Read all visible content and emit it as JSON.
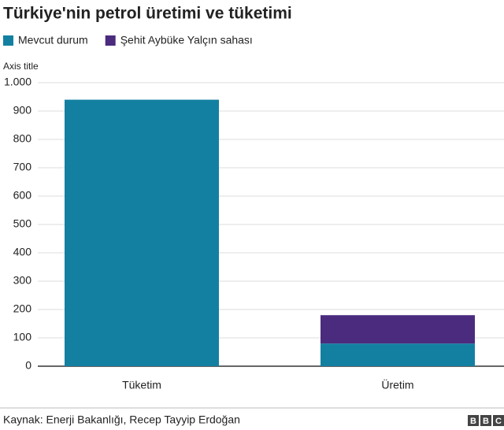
{
  "chart_data": {
    "type": "stacked_bar",
    "title": "Türkiye'nin petrol üretimi ve tüketimi",
    "y_axis_title": "Axis title",
    "categories": [
      "Tüketim",
      "Üretim"
    ],
    "series": [
      {
        "name": "Mevcut durum",
        "color": "#1380A1",
        "values": [
          940,
          80
        ]
      },
      {
        "name": "Şehit Aybüke Yalçın sahası",
        "color": "#4B2B7E",
        "values": [
          null,
          100
        ]
      }
    ],
    "ylim": [
      0,
      1000
    ],
    "yticks": [
      0,
      100,
      200,
      300,
      400,
      500,
      600,
      700,
      800,
      900,
      {
        "value": 1000,
        "label": "1.000"
      }
    ],
    "grid": true,
    "source": "Kaynak: Enerji Bakanlığı, Recep Tayyip Erdoğan",
    "logo": [
      "B",
      "B",
      "C"
    ]
  }
}
